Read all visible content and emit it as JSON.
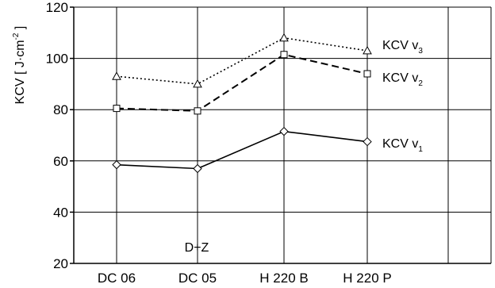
{
  "chart_data": {
    "type": "line",
    "categories": [
      "DC 06",
      "DC 05",
      "H 220 B",
      "H 220 P"
    ],
    "ylabel": "KCV [ J·cm⁻² ]",
    "ylim": [
      20,
      120
    ],
    "yticks": [
      20,
      40,
      60,
      80,
      100,
      120
    ],
    "grid": true,
    "annotation": "D+Z",
    "series": [
      {
        "name": "KCV v1",
        "label_base": "KCV v",
        "label_sub": "1",
        "marker": "diamond",
        "line": "solid",
        "values": [
          58.5,
          57,
          71.5,
          67.5
        ]
      },
      {
        "name": "KCV v2",
        "label_base": "KCV v",
        "label_sub": "2",
        "marker": "square",
        "line": "dashed",
        "values": [
          80.5,
          79.5,
          101.5,
          94
        ]
      },
      {
        "name": "KCV v3",
        "label_base": "KCV v",
        "label_sub": "3",
        "marker": "triangle",
        "line": "dotted",
        "values": [
          93,
          90,
          108,
          103
        ]
      }
    ]
  }
}
